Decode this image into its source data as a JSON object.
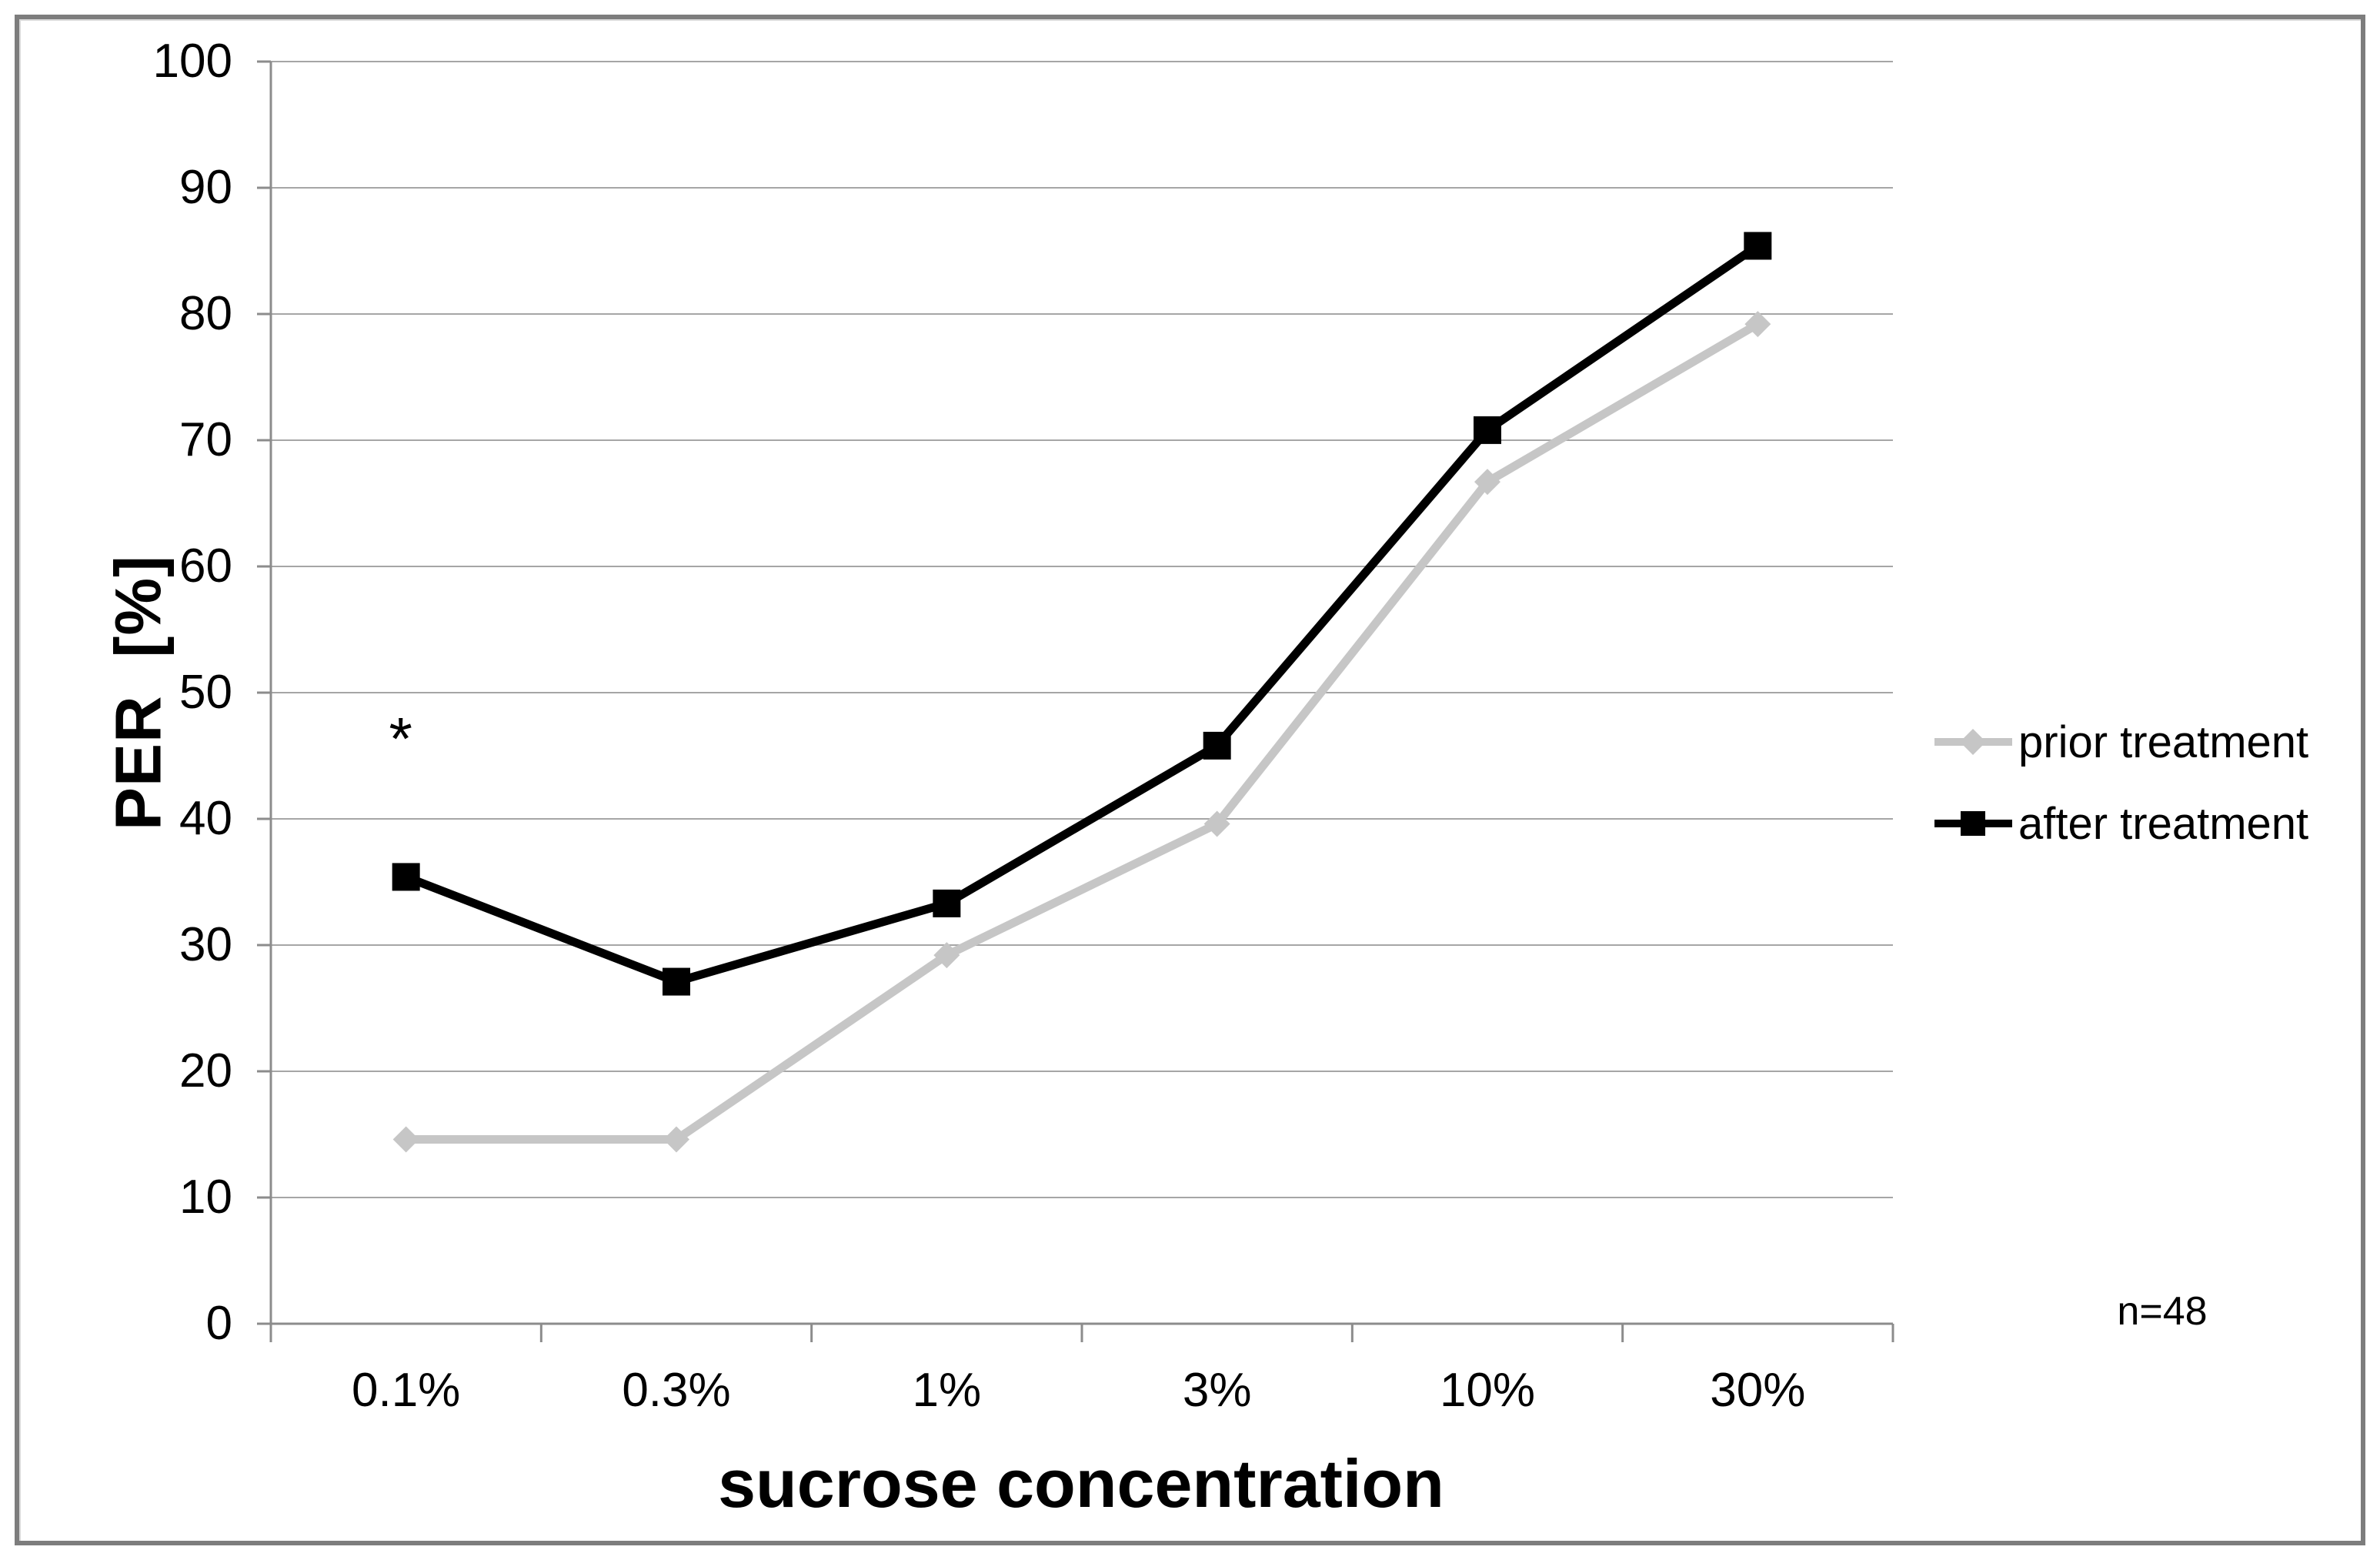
{
  "chart_data": {
    "type": "line",
    "xlabel": "sucrose concentration",
    "ylabel": "PER  [%]",
    "categories": [
      "0.1%",
      "0.3%",
      "1%",
      "3%",
      "10%",
      "30%"
    ],
    "series": [
      {
        "name": "prior treatment",
        "color": "#c6c6c6",
        "marker": "diamond",
        "values": [
          14.6,
          14.6,
          29.2,
          39.6,
          66.7,
          79.2
        ]
      },
      {
        "name": "after treatment",
        "color": "#000000",
        "marker": "square",
        "values": [
          35.4,
          27.1,
          33.3,
          45.8,
          70.8,
          85.4
        ]
      }
    ],
    "ylim": [
      0,
      100
    ],
    "yticks": [
      0,
      10,
      20,
      30,
      40,
      50,
      60,
      70,
      80,
      90,
      100
    ],
    "grid": true,
    "legend_position": "right-outside",
    "annotations": [
      {
        "text": "*",
        "category_index": 0,
        "value": 47.1
      }
    ],
    "note": "n=48",
    "colors": {
      "gridline": "#a6a6a6",
      "axis": "#8c8c8c",
      "frame_border": "#7d7d7d",
      "background": "#ffffff"
    }
  }
}
